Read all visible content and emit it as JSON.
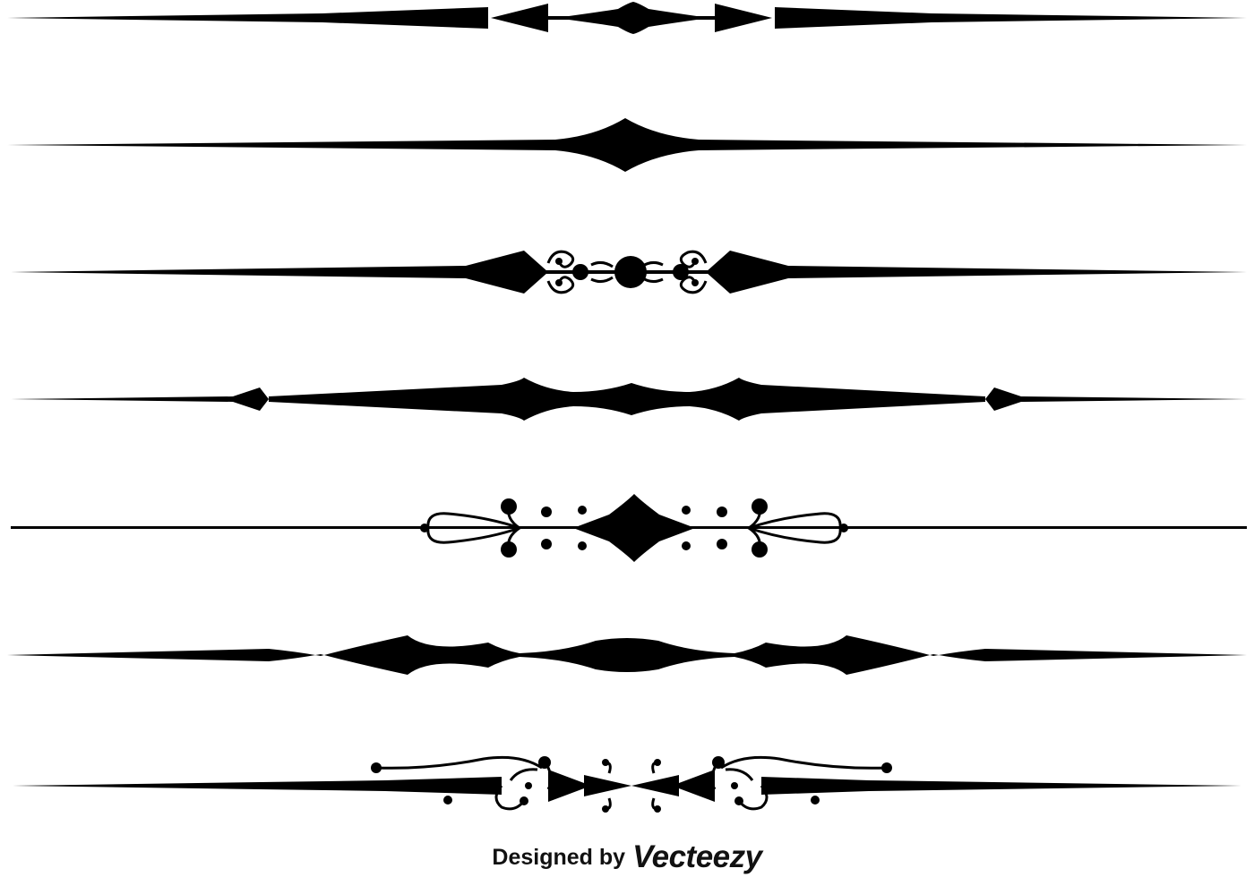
{
  "page": {
    "background": "#ffffff",
    "ink_color": "#000000"
  },
  "dividers": [
    {
      "name": "divider-arrowheads",
      "style": "spike line with double arrowheads and central lens"
    },
    {
      "name": "divider-diamond",
      "style": "spike line with central curved diamond"
    },
    {
      "name": "divider-scroll-dot",
      "style": "spike line with scroll curls and central dot"
    },
    {
      "name": "divider-triple-wave",
      "style": "spike line with three wave peaks and side diamonds"
    },
    {
      "name": "divider-loops-dots",
      "style": "thin line with loops, curl dots and central diamond"
    },
    {
      "name": "divider-bumps",
      "style": "spike line with multiple bumps and lens"
    },
    {
      "name": "divider-flourish-bowtie",
      "style": "spike line with flourish swirls and bowtie center"
    }
  ],
  "credit": {
    "prefix": "Designed by",
    "brand": "Vecteezy"
  }
}
